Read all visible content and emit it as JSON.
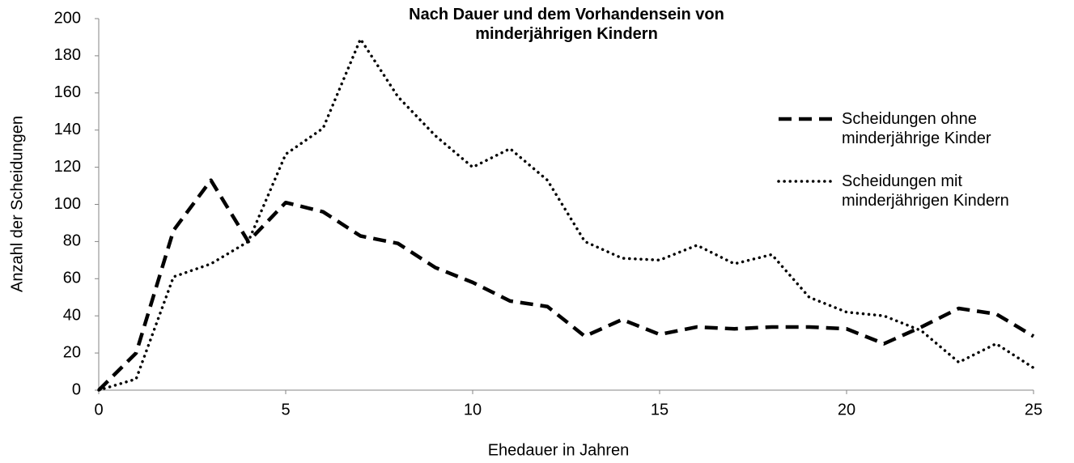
{
  "chart_data": {
    "type": "line",
    "title": "Nach Dauer und dem Vorhandensein von minderjährigen Kindern",
    "x_label": "Ehedauer in Jahren",
    "y_label": "Anzahl der Scheidungen",
    "x": [
      0,
      1,
      2,
      3,
      4,
      5,
      6,
      7,
      8,
      9,
      10,
      11,
      12,
      13,
      14,
      15,
      16,
      17,
      18,
      19,
      20,
      21,
      22,
      23,
      24,
      25
    ],
    "series": [
      {
        "name": "Scheidungen ohne minderjährige Kinder",
        "color": "#000000",
        "style": "dashed",
        "values": [
          0,
          20,
          86,
          113,
          80,
          101,
          96,
          83,
          79,
          66,
          58,
          48,
          45,
          29,
          38,
          30,
          34,
          33,
          34,
          34,
          33,
          25,
          34,
          44,
          41,
          29
        ]
      },
      {
        "name": "Scheidungen mit minderjährigen Kindern",
        "color": "#000000",
        "style": "dotted",
        "values": [
          0,
          6,
          61,
          68,
          80,
          127,
          141,
          189,
          158,
          137,
          120,
          130,
          113,
          80,
          71,
          70,
          78,
          68,
          73,
          50,
          42,
          40,
          32,
          15,
          25,
          12
        ]
      }
    ],
    "xlim": [
      0,
      25
    ],
    "xticks": [
      0,
      5,
      10,
      15,
      20,
      25
    ],
    "ylim": [
      0,
      200
    ],
    "yticks": [
      0,
      20,
      40,
      60,
      80,
      100,
      120,
      140,
      160,
      180,
      200
    ],
    "grid": false
  }
}
